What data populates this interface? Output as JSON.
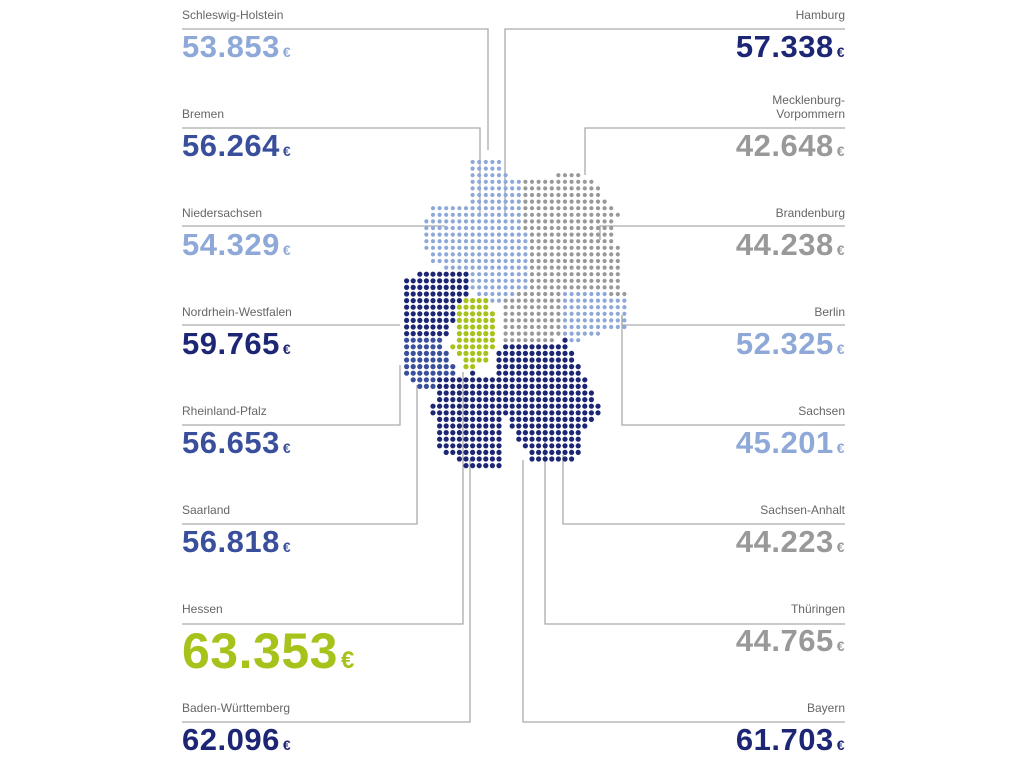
{
  "colors": {
    "light_blue": "#8ea8d8",
    "medium_blue": "#394f9c",
    "dark_blue": "#1c2674",
    "gray": "#999999",
    "green": "#a6c31b",
    "line": "#aaaaaa"
  },
  "currency": "€",
  "left": [
    {
      "name": "Schleswig-Holstein",
      "value": "53.853",
      "color": "light_blue"
    },
    {
      "name": "Bremen",
      "value": "56.264",
      "color": "medium_blue"
    },
    {
      "name": "Niedersachsen",
      "value": "54.329",
      "color": "light_blue"
    },
    {
      "name": "Nordrhein-Westfalen",
      "value": "59.765",
      "color": "dark_blue"
    },
    {
      "name": "Rheinland-Pfalz",
      "value": "56.653",
      "color": "medium_blue"
    },
    {
      "name": "Saarland",
      "value": "56.818",
      "color": "medium_blue"
    },
    {
      "name": "Hessen",
      "value": "63.353",
      "color": "green"
    },
    {
      "name": "Baden-Württemberg",
      "value": "62.096",
      "color": "dark_blue"
    }
  ],
  "right": [
    {
      "name": "Hamburg",
      "value": "57.338",
      "color": "dark_blue"
    },
    {
      "name": "Mecklenburg-\nVorpommern",
      "value": "42.648",
      "color": "gray"
    },
    {
      "name": "Brandenburg",
      "value": "44.238",
      "color": "gray"
    },
    {
      "name": "Berlin",
      "value": "52.325",
      "color": "light_blue"
    },
    {
      "name": "Sachsen",
      "value": "45.201",
      "color": "light_blue"
    },
    {
      "name": "Sachsen-Anhalt",
      "value": "44.223",
      "color": "gray"
    },
    {
      "name": "Thüringen",
      "value": "44.765",
      "color": "gray"
    },
    {
      "name": "Bayern",
      "value": "61.703",
      "color": "dark_blue"
    }
  ]
}
